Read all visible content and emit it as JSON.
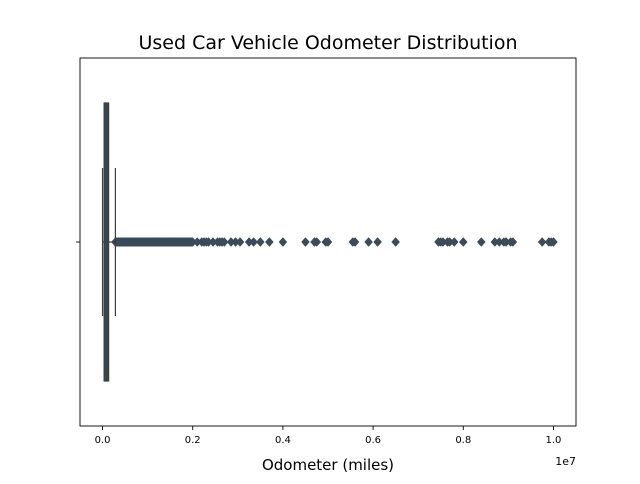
{
  "chart_data": {
    "type": "boxplot",
    "title": "Used Car Vehicle Odometer Distribution",
    "xlabel": "Odometer (miles)",
    "ylabel": "",
    "x_scale_offset_label": "1e7",
    "xlim": [
      -500000,
      10500000
    ],
    "x_ticks": [
      0,
      2000000,
      4000000,
      6000000,
      8000000,
      10000000
    ],
    "x_tick_labels": [
      "0.0",
      "0.2",
      "0.4",
      "0.6",
      "0.8",
      "1.0"
    ],
    "grid": false,
    "orientation": "horizontal",
    "box": {
      "min": 0,
      "q1": 35000,
      "median": 90000,
      "q3": 135000,
      "max": 285000
    },
    "dense_outlier_range": [
      285000,
      2000000
    ],
    "outliers": [
      2100000,
      2200000,
      2250000,
      2300000,
      2350000,
      2450000,
      2550000,
      2600000,
      2650000,
      2700000,
      2850000,
      2950000,
      3050000,
      3250000,
      3350000,
      3500000,
      3700000,
      4000000,
      4500000,
      4700000,
      4750000,
      4950000,
      5000000,
      5550000,
      5600000,
      5900000,
      6100000,
      6500000,
      7450000,
      7500000,
      7550000,
      7650000,
      7700000,
      7800000,
      8000000,
      8400000,
      8700000,
      8800000,
      8900000,
      8950000,
      9050000,
      9100000,
      9750000,
      9900000,
      9950000,
      10000000
    ],
    "colors": {
      "box_fill": "#3b4b59",
      "line": "#3d3d3d",
      "outlier": "#3b4b59"
    }
  }
}
